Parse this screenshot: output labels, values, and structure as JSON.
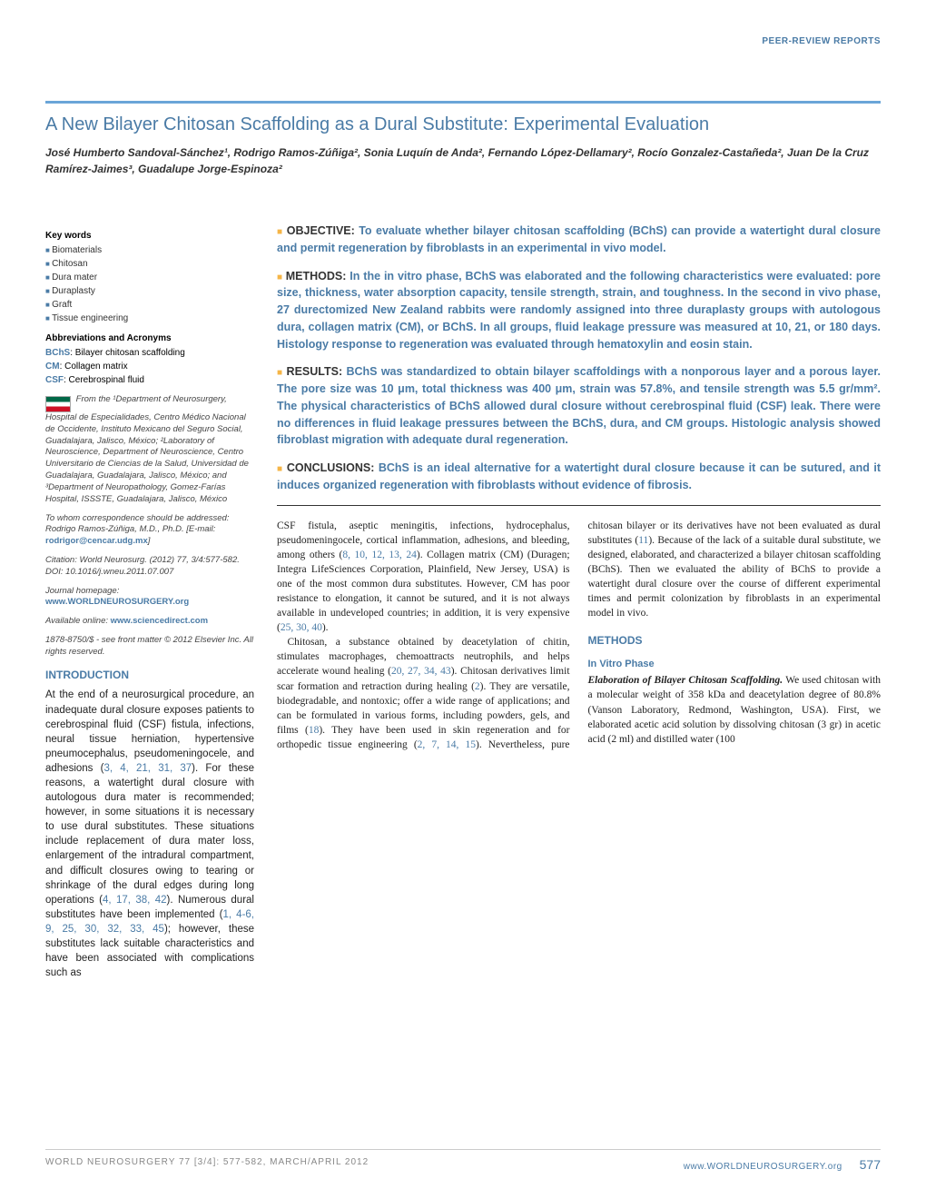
{
  "header_label": "PEER-REVIEW REPORTS",
  "title": "A New Bilayer Chitosan Scaffolding as a Dural Substitute: Experimental Evaluation",
  "authors_html": "José Humberto Sandoval-Sánchez¹, Rodrigo Ramos-Zúñiga², Sonia Luquín de Anda², Fernando López-Dellamary², Rocío Gonzalez-Castañeda², Juan De la Cruz Ramírez-Jaimes³, Guadalupe Jorge-Espinoza²",
  "keywords_title": "Key words",
  "keywords": [
    "Biomaterials",
    "Chitosan",
    "Dura mater",
    "Duraplasty",
    "Graft",
    "Tissue engineering"
  ],
  "abbr_title": "Abbreviations and Acronyms",
  "abbrs": [
    {
      "k": "BChS",
      "v": ": Bilayer chitosan scaffolding"
    },
    {
      "k": "CM",
      "v": ": Collagen matrix"
    },
    {
      "k": "CSF",
      "v": ": Cerebrospinal fluid"
    }
  ],
  "affil": "From the ¹Department of Neurosurgery, Hospital de Especialidades, Centro Médico Nacional de Occidente, Instituto Mexicano del Seguro Social, Guadalajara, Jalisco, México; ²Laboratory of Neuroscience, Department of Neuroscience, Centro Universitario de Ciencias de la Salud, Universidad de Guadalajara, Guadalajara, Jalisco, México; and ³Department of Neuropathology, Gomez-Farías Hospital, ISSSTE, Guadalajara, Jalisco, México",
  "corr": "To whom correspondence should be addressed: Rodrigo Ramos-Zúñiga, M.D., Ph.D. [E-mail: ",
  "corr_email": "rodrigor@cencar.udg.mx",
  "corr_end": "]",
  "citation": "Citation: World Neurosurg. (2012) 77, 3/4:577-582. DOI: 10.1016/j.wneu.2011.07.007",
  "homepage_lbl": "Journal homepage: ",
  "homepage": "www.WORLDNEUROSURGERY.org",
  "online_lbl": "Available online: ",
  "online": "www.sciencedirect.com",
  "copyright": "1878-8750/$ - see front matter © 2012 Elsevier Inc. All rights reserved.",
  "abstract": {
    "objective_lead": "OBJECTIVE:",
    "objective": " To evaluate whether bilayer chitosan scaffolding (BChS) can provide a watertight dural closure and permit regeneration by fibroblasts in an experimental in vivo model.",
    "methods_lead": "METHODS:",
    "methods": " In the in vitro phase, BChS was elaborated and the following characteristics were evaluated: pore size, thickness, water absorption capacity, tensile strength, strain, and toughness. In the second in vivo phase, 27 durectomized New Zealand rabbits were randomly assigned into three duraplasty groups with autologous dura, collagen matrix (CM), or BChS. In all groups, fluid leakage pressure was measured at 10, 21, or 180 days. Histology response to regeneration was evaluated through hematoxylin and eosin stain.",
    "results_lead": "RESULTS:",
    "results": " BChS was standardized to obtain bilayer scaffoldings with a nonporous layer and a porous layer. The pore size was 10 μm, total thickness was 400 μm, strain was 57.8%, and tensile strength was 5.5 gr/mm². The physical characteristics of BChS allowed dural closure without cerebrospinal fluid (CSF) leak. There were no differences in fluid leakage pressures between the BChS, dura, and CM groups. Histologic analysis showed fibroblast migration with adequate dural regeneration.",
    "conclusions_lead": "CONCLUSIONS:",
    "conclusions": " BChS is an ideal alternative for a watertight dural closure because it can be sutured, and it induces organized regeneration with fibroblasts without evidence of fibrosis."
  },
  "intro_head": "INTRODUCTION",
  "intro_p1a": "At the end of a neurosurgical procedure, an inadequate dural closure exposes patients to cerebrospinal fluid (CSF) fistula, infections, neural tissue herniation, hypertensive pneumocephalus, pseudomeningocele, and adhesions (",
  "intro_p1_refs1": "3, 4, 21, 31, 37",
  "intro_p1b": "). For these reasons, a watertight dural closure with autologous dura mater is recommended; however, in some situations it is necessary to use dural substitutes. These situations include replacement of dura mater loss, enlargement of the intradural compartment, and difficult closures owing to tearing or shrinkage of the dural edges during long operations (",
  "intro_p1_refs2": "4, 17, 38, 42",
  "intro_p1c": "). Numerous dural substitutes have been implemented (",
  "intro_p1_refs3": "1, 4-6, 9, 25, 30, 32, 33, 45",
  "intro_p1d": "); however, these substitutes lack suitable characteristics and have been associated with complications such as",
  "col2_p1a": "CSF fistula, aseptic meningitis, infections, hydrocephalus, pseudomeningocele, cortical inflammation, adhesions, and bleeding, among others (",
  "col2_p1_refs1": "8, 10, 12, 13, 24",
  "col2_p1b": "). Collagen matrix (CM) (Duragen; Integra LifeSciences Corporation, Plainfield, New Jersey, USA) is one of the most common dura substitutes. However, CM has poor resistance to elongation, it cannot be sutured, and it is not always available in undeveloped countries; in addition, it is very expensive (",
  "col2_p1_refs2": "25, 30, 40",
  "col2_p1c": ").",
  "col2_p2a": "Chitosan, a substance obtained by deacetylation of chitin, stimulates macrophages, chemoattracts neutrophils, and helps accelerate wound healing (",
  "col2_p2_refs1": "20, 27, 34, 43",
  "col2_p2b": "). Chitosan derivatives limit scar formation and retraction during healing (",
  "col2_p2_refs2": "2",
  "col2_p2c": "). They are versatile, biodegradable, and nontoxic; offer a wide range of applications; and can be formulated in various forms, including powders, gels, and films (",
  "col2_p2_refs3": "18",
  "col2_p2d": "). They have been used in skin regeneration and for orthopedic tissue engineering (",
  "col2_p2_refs4": "2, 7,",
  "col3_p1a": "14, 15",
  "col3_p1b": "). Nevertheless, pure chitosan bilayer or its derivatives have not been evaluated as dural substitutes (",
  "col3_p1_refs1": "11",
  "col3_p1c": "). Because of the lack of a suitable dural substitute, we designed, elaborated, and characterized a bilayer chitosan scaffolding (BChS). Then we evaluated the ability of BChS to provide a watertight dural closure over the course of different experimental times and permit colonization by fibroblasts in an experimental model in vivo.",
  "methods_head": "METHODS",
  "invitro_head": "In Vitro Phase",
  "elab_runin": "Elaboration of Bilayer Chitosan Scaffolding.",
  "elab_body": " We used chitosan with a molecular weight of 358 kDa and deacetylation degree of 80.8% (Vanson Laboratory, Redmond, Washington, USA). First, we elaborated acetic acid solution by dissolving chitosan (3 gr) in acetic acid (2 ml) and distilled water (100",
  "footer_left": "WORLD NEUROSURGERY 77 [3/4]: 577-582, MARCH/APRIL 2012",
  "footer_link": "www.WORLDNEUROSURGERY.org",
  "footer_page": "577"
}
